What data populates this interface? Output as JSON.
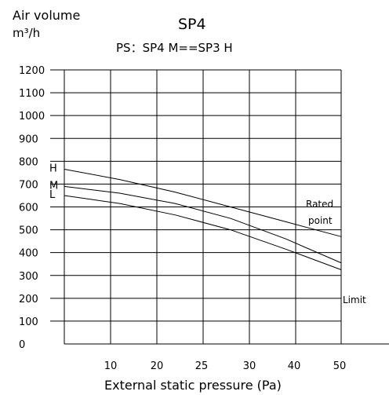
{
  "chart_data": {
    "type": "line",
    "title": "SP4",
    "subtitle": "PS：SP4 M==SP3 H",
    "ylabel_line1": "Air volume",
    "ylabel_line2": "m³/h",
    "xlabel": "External static pressure (Pa)",
    "x_ticks": [
      "10",
      "20",
      "25",
      "30",
      "40",
      "50"
    ],
    "y_ticks": [
      "0",
      "100",
      "200",
      "300",
      "400",
      "500",
      "600",
      "700",
      "800",
      "900",
      "1000",
      "1100",
      "1200"
    ],
    "ylim": [
      0,
      1200
    ],
    "grid": true,
    "series": [
      {
        "name": "H",
        "x": [
          0,
          10,
          20,
          30,
          40,
          50
        ],
        "y": [
          765,
          720,
          665,
          600,
          535,
          470
        ]
      },
      {
        "name": "M",
        "x": [
          0,
          10,
          20,
          30,
          40,
          50
        ],
        "y": [
          690,
          660,
          615,
          550,
          460,
          355
        ]
      },
      {
        "name": "L",
        "x": [
          0,
          10,
          20,
          30,
          40,
          50
        ],
        "y": [
          650,
          615,
          565,
          500,
          415,
          325
        ]
      }
    ],
    "annotations": [
      {
        "text": "Rated point",
        "line1": "Rated",
        "line2": "point",
        "x": 40,
        "y": 600
      },
      {
        "text": "Limit",
        "x": 50,
        "y": 200
      }
    ]
  }
}
